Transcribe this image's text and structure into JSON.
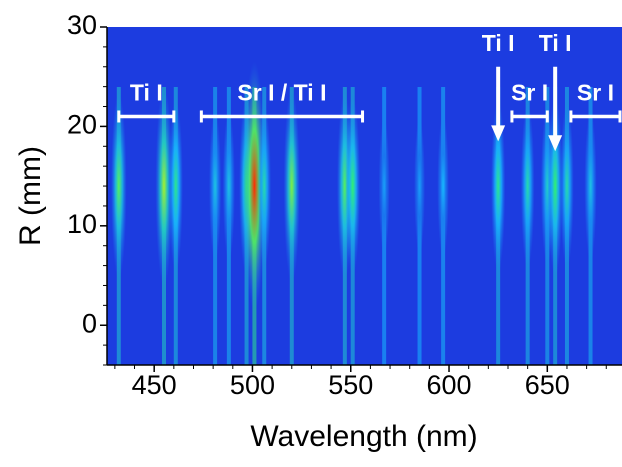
{
  "chart_data": {
    "type": "spectral-image",
    "xlabel": "Wavelength    (nm)",
    "ylabel": "R (mm)",
    "xlim": [
      426,
      688
    ],
    "ylim": [
      -4,
      30
    ],
    "xticks": [
      450,
      500,
      550,
      600,
      650
    ],
    "yticks": [
      0,
      10,
      20,
      30
    ],
    "background": "#1c3ce0",
    "colormap": [
      "#1c3ce0",
      "#18b8ff",
      "#30f070",
      "#f0f000",
      "#ff2a00"
    ],
    "lines": {
      "x": [
        432,
        455,
        461,
        481,
        488,
        497,
        501,
        506,
        520,
        547,
        551,
        567,
        585,
        597,
        625,
        640,
        650,
        654,
        660,
        672
      ],
      "values": [
        0.55,
        0.65,
        0.45,
        0.3,
        0.3,
        0.5,
        1.0,
        0.4,
        0.6,
        0.55,
        0.5,
        0.2,
        0.2,
        0.25,
        0.45,
        0.4,
        0.35,
        0.5,
        0.4,
        0.3
      ]
    },
    "annotations": [
      {
        "text": "Ti I",
        "kind": "bracket",
        "x": [
          432,
          460
        ],
        "y": 21
      },
      {
        "text": "Sr I / Ti I",
        "kind": "bracket",
        "x": [
          474,
          556
        ],
        "y": 21
      },
      {
        "text": "Ti I",
        "kind": "arrow",
        "x": 625,
        "y": [
          26,
          18.5
        ]
      },
      {
        "text": "Sr I",
        "kind": "bracket",
        "x": [
          632,
          650
        ],
        "y": 21
      },
      {
        "text": "Ti I",
        "kind": "arrow",
        "x": 654,
        "y": [
          26,
          17.5
        ]
      },
      {
        "text": "Sr I",
        "kind": "bracket",
        "x": [
          662,
          688
        ],
        "y": 21
      }
    ]
  }
}
